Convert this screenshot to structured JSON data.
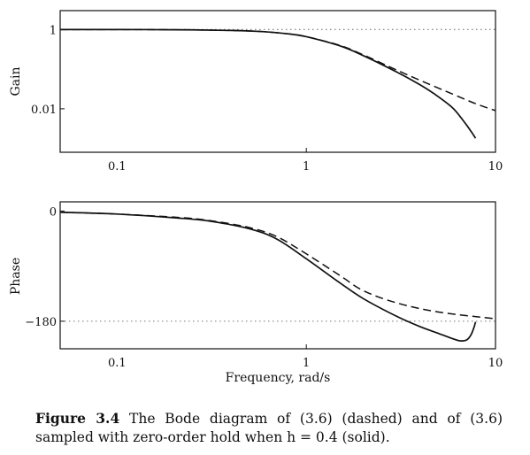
{
  "chart_data": [
    {
      "type": "line",
      "title": "",
      "xlabel": "",
      "ylabel": "Gain",
      "x_scale": "log",
      "y_scale": "log",
      "xlim": [
        0.05,
        10
      ],
      "ylim": [
        0.0008,
        3
      ],
      "x_ticks": [
        0.1,
        1,
        10
      ],
      "x_tick_labels": [
        "0.1",
        "1",
        "10"
      ],
      "y_ticks": [
        1,
        0.01
      ],
      "y_tick_labels": [
        "1",
        "0.01"
      ],
      "reference_lines": [
        {
          "axis": "y",
          "value": 1,
          "style": "dotted"
        }
      ],
      "series": [
        {
          "style": "dashed",
          "x": [
            0.05,
            0.1,
            0.2,
            0.4,
            0.6,
            0.8,
            1.0,
            1.5,
            2.0,
            3.0,
            4.0,
            6.0,
            8.0,
            10.0
          ],
          "y": [
            1.0,
            1.0,
            0.99,
            0.95,
            0.88,
            0.78,
            0.66,
            0.4,
            0.23,
            0.095,
            0.052,
            0.023,
            0.013,
            0.009
          ]
        },
        {
          "style": "solid",
          "x": [
            0.05,
            0.1,
            0.2,
            0.4,
            0.6,
            0.8,
            1.0,
            1.5,
            2.0,
            3.0,
            4.0,
            5.0,
            6.0,
            7.0,
            7.5,
            7.85
          ],
          "y": [
            1.0,
            1.0,
            0.99,
            0.95,
            0.88,
            0.78,
            0.66,
            0.39,
            0.22,
            0.085,
            0.04,
            0.02,
            0.01,
            0.004,
            0.0025,
            0.0018
          ]
        }
      ]
    },
    {
      "type": "line",
      "title": "",
      "xlabel": "Frequency, rad/s",
      "ylabel": "Phase",
      "x_scale": "log",
      "y_scale": "linear",
      "xlim": [
        0.05,
        10
      ],
      "ylim": [
        -225,
        15
      ],
      "x_ticks": [
        0.1,
        1,
        10
      ],
      "x_tick_labels": [
        "0.1",
        "1",
        "10"
      ],
      "y_ticks": [
        0,
        -180
      ],
      "y_tick_labels": [
        "0",
        "−180"
      ],
      "reference_lines": [
        {
          "axis": "y",
          "value": -180,
          "style": "dotted"
        }
      ],
      "series": [
        {
          "style": "dashed",
          "x": [
            0.05,
            0.1,
            0.2,
            0.3,
            0.5,
            0.7,
            1.0,
            1.5,
            2.0,
            3.0,
            5.0,
            10.0
          ],
          "y": [
            -2,
            -5,
            -10,
            -15,
            -27,
            -42,
            -70,
            -105,
            -130,
            -150,
            -165,
            -176
          ]
        },
        {
          "style": "solid",
          "x": [
            0.05,
            0.1,
            0.2,
            0.3,
            0.5,
            0.7,
            1.0,
            1.5,
            2.0,
            3.0,
            4.0,
            5.0,
            6.0,
            6.5,
            7.0,
            7.4,
            7.7,
            7.85
          ],
          "y": [
            -2,
            -5,
            -11,
            -16,
            -29,
            -46,
            -78,
            -117,
            -143,
            -172,
            -189,
            -200,
            -209,
            -212,
            -211,
            -203,
            -190,
            -181
          ]
        }
      ]
    }
  ],
  "caption": {
    "label": "Figure 3.4",
    "text": " The Bode diagram of (3.6) (dashed) and of (3.6) sampled with zero-order hold when h = 0.4 (solid)."
  }
}
